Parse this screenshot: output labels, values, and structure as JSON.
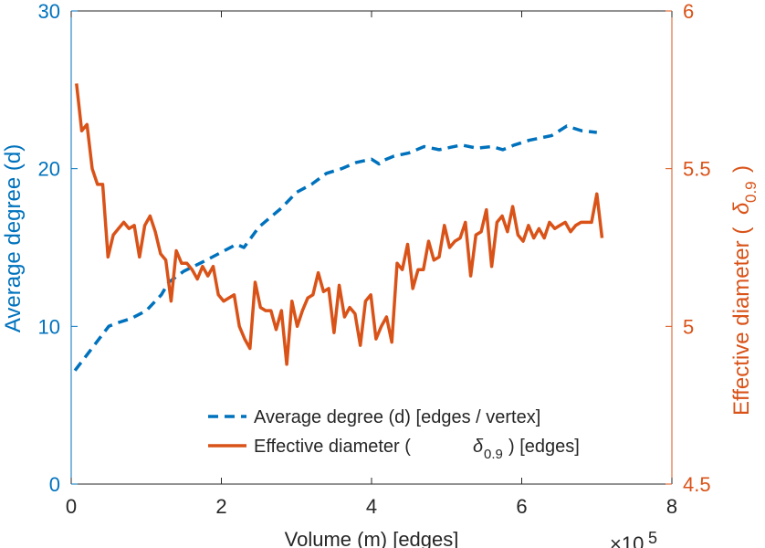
{
  "chart_data": {
    "type": "line",
    "title": "",
    "xlabel": "Volume (m) [edges]",
    "x_exponent_label": "×10",
    "x_exponent_power": "5",
    "xlim": [
      0,
      8
    ],
    "x_ticks": [
      "0",
      "2",
      "4",
      "6",
      "8"
    ],
    "ylabel_left": "Average degree (d)",
    "ylim_left": [
      0,
      30
    ],
    "y_ticks_left": [
      "0",
      "10",
      "20",
      "30"
    ],
    "ylabel_right": "Effective diameter (",
    "ylabel_right_symbol": "δ",
    "ylabel_right_sub": "0.9",
    "ylabel_right_close": ")",
    "ylim_right": [
      4.5,
      6
    ],
    "y_ticks_right": [
      "4.5",
      "5",
      "5.5",
      "6"
    ],
    "legend_position": "bottom-center",
    "colors": {
      "left": "#0072BD",
      "right": "#D95319",
      "axis": "#262626"
    },
    "series": [
      {
        "name": "Average degree (d) [edges / vertex]",
        "axis": "left",
        "style": "dashed",
        "x": [
          0.05,
          0.5,
          0.6,
          0.8,
          1.0,
          1.2,
          1.3,
          1.5,
          1.8,
          2.0,
          2.2,
          2.3,
          2.5,
          2.8,
          3.0,
          3.2,
          3.4,
          3.6,
          3.8,
          4.0,
          4.1,
          4.15,
          4.3,
          4.5,
          4.7,
          4.9,
          5.2,
          5.4,
          5.6,
          5.75,
          5.9,
          6.1,
          6.4,
          6.6,
          6.8,
          7.0
        ],
        "values": [
          7.2,
          10.0,
          10.2,
          10.5,
          11.0,
          12.0,
          12.8,
          13.5,
          14.2,
          14.7,
          15.2,
          15.0,
          16.3,
          17.5,
          18.5,
          19.0,
          19.7,
          20.0,
          20.4,
          20.6,
          20.3,
          20.5,
          20.8,
          21.0,
          21.4,
          21.2,
          21.5,
          21.3,
          21.4,
          21.2,
          21.5,
          21.8,
          22.1,
          22.7,
          22.4,
          22.3
        ]
      },
      {
        "name": "Effective diameter (",
        "name_symbol": "δ",
        "name_sub": "0.9",
        "name_suffix": ") [edges]",
        "axis": "right",
        "style": "solid",
        "x": [
          0.07,
          0.14,
          0.21,
          0.28,
          0.35,
          0.42,
          0.49,
          0.56,
          0.63,
          0.7,
          0.77,
          0.84,
          0.91,
          0.98,
          1.05,
          1.12,
          1.19,
          1.26,
          1.33,
          1.4,
          1.47,
          1.54,
          1.61,
          1.68,
          1.75,
          1.82,
          1.89,
          1.96,
          2.03,
          2.1,
          2.17,
          2.24,
          2.31,
          2.38,
          2.45,
          2.52,
          2.59,
          2.66,
          2.73,
          2.8,
          2.87,
          2.94,
          3.01,
          3.08,
          3.15,
          3.22,
          3.29,
          3.36,
          3.43,
          3.5,
          3.57,
          3.64,
          3.71,
          3.78,
          3.85,
          3.92,
          3.99,
          4.06,
          4.13,
          4.2,
          4.27,
          4.34,
          4.41,
          4.48,
          4.55,
          4.62,
          4.69,
          4.76,
          4.83,
          4.9,
          4.97,
          5.04,
          5.11,
          5.18,
          5.25,
          5.32,
          5.39,
          5.46,
          5.53,
          5.6,
          5.67,
          5.74,
          5.81,
          5.88,
          5.95,
          6.02,
          6.09,
          6.16,
          6.23,
          6.3,
          6.37,
          6.44,
          6.51,
          6.58,
          6.65,
          6.72,
          6.79,
          6.86,
          6.93,
          7.0,
          7.07
        ],
        "values": [
          5.77,
          5.62,
          5.64,
          5.5,
          5.45,
          5.45,
          5.22,
          5.29,
          5.31,
          5.33,
          5.31,
          5.32,
          5.22,
          5.32,
          5.35,
          5.3,
          5.23,
          5.21,
          5.08,
          5.24,
          5.2,
          5.2,
          5.18,
          5.15,
          5.19,
          5.16,
          5.19,
          5.1,
          5.08,
          5.09,
          5.1,
          5.0,
          4.96,
          4.93,
          5.14,
          5.06,
          5.05,
          5.05,
          4.99,
          5.05,
          4.88,
          5.08,
          5.0,
          5.05,
          5.09,
          5.1,
          5.17,
          5.11,
          5.12,
          4.98,
          5.13,
          5.03,
          5.06,
          5.04,
          4.94,
          5.08,
          5.1,
          4.96,
          5.0,
          5.03,
          4.95,
          5.2,
          5.18,
          5.26,
          5.12,
          5.18,
          5.18,
          5.27,
          5.21,
          5.22,
          5.32,
          5.25,
          5.27,
          5.28,
          5.33,
          5.16,
          5.29,
          5.3,
          5.37,
          5.19,
          5.33,
          5.35,
          5.3,
          5.38,
          5.29,
          5.27,
          5.32,
          5.28,
          5.31,
          5.28,
          5.33,
          5.31,
          5.32,
          5.33,
          5.3,
          5.32,
          5.33,
          5.33,
          5.33,
          5.42,
          5.28
        ]
      }
    ]
  }
}
